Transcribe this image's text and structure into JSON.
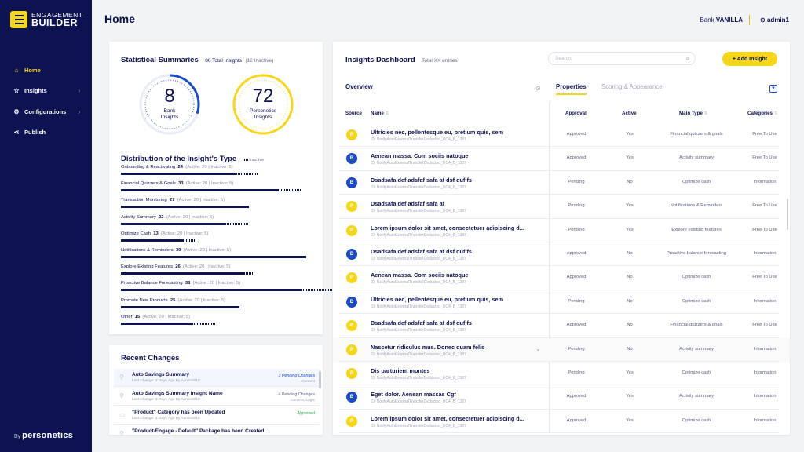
{
  "brand": {
    "top": "ENGAGEMENT",
    "bottom": "BUILDER",
    "by": "By",
    "by_brand": "personetics"
  },
  "nav": [
    {
      "label": "Home",
      "icon": "home-icon",
      "glyph": "⌂",
      "active": true,
      "chev": ""
    },
    {
      "label": "Insights",
      "icon": "star-icon",
      "glyph": "☆",
      "active": false,
      "chev": "›"
    },
    {
      "label": "Configurations",
      "icon": "gear-icon",
      "glyph": "⚙",
      "active": false,
      "chev": "›"
    },
    {
      "label": "Publish",
      "icon": "share-icon",
      "glyph": "⋖",
      "active": false,
      "chev": ""
    }
  ],
  "header": {
    "title": "Home",
    "bank_prefix": "Bank",
    "bank_name": "VANILLA",
    "user": "admin1"
  },
  "stats": {
    "title": "Statistical Summaries",
    "total": "80 Total Insights",
    "inactive": "(12 Inactive)",
    "bank_count": "8",
    "bank_label1": "Bank",
    "bank_label2": "Insights",
    "pers_count": "72",
    "pers_label1": "Personetics",
    "pers_label2": "Insights",
    "dist_title": "Distribution of the Insight's Type",
    "dist_legend": "Inactive"
  },
  "distribution": [
    {
      "name": "Onboarding & Reactivating",
      "count": "24",
      "detail": "(Active: 20 | Inactive: 5)",
      "value": 24,
      "inactive": 5
    },
    {
      "name": "Financial Quizzers & Goals",
      "count": "33",
      "detail": "(Active: 20 | Inactive: 5)",
      "value": 33,
      "inactive": 5
    },
    {
      "name": "Transaction Monitoring",
      "count": "27",
      "detail": "(Active: 20 | Inactive: 5)",
      "value": 27,
      "inactive": 0
    },
    {
      "name": "Activity Summary",
      "count": "22",
      "detail": "(Active: 20 | Inactive: 5)",
      "value": 22,
      "inactive": 5
    },
    {
      "name": "Optimize Cash",
      "count": "13",
      "detail": "(Active: 20 | Inactive: 5)",
      "value": 13,
      "inactive": 3
    },
    {
      "name": "Notifications & Reminders",
      "count": "39",
      "detail": "(Active: 20 | Inactive: 5)",
      "value": 39,
      "inactive": 0
    },
    {
      "name": "Explore Existing Features",
      "count": "26",
      "detail": "(Active: 20 | Inactive: 5)",
      "value": 26,
      "inactive": 2
    },
    {
      "name": "Proactive Balance Forecasting",
      "count": "38",
      "detail": "(Active: 20 | Inactive: 5)",
      "value": 38,
      "inactive": 16
    },
    {
      "name": "Promote New Products",
      "count": "25",
      "detail": "(Active: 20 | Inactive: 5)",
      "value": 25,
      "inactive": 0
    },
    {
      "name": "Other",
      "count": "15",
      "detail": "(Active: 20 | Inactive: 5)",
      "value": 15,
      "inactive": 5
    }
  ],
  "recent": {
    "title": "Recent Changes",
    "items": [
      {
        "title": "Auto Savings Summary",
        "meta": "Last Change: 3 Days Ago By Admin2019",
        "r1": "3 Pending Changes",
        "r2": "Content",
        "c1": "#1a4bc9",
        "icon": "pin-icon"
      },
      {
        "title": "Auto Savings Summary Insight Name",
        "meta": "Last Change: 3 Days Ago By Admin2019",
        "r1": "4 Pending Changes",
        "r2": "Content, Logic",
        "c1": "#5d6180",
        "icon": "pin-icon"
      },
      {
        "title": "\"Product\" Category has been Updated",
        "meta": "Last Change: 3 Days Ago By Admin2019",
        "r1": "Approved",
        "r2": "",
        "c1": "#2fa84f",
        "icon": "card-icon"
      },
      {
        "title": "\"Product-Engage - Default\" Package has been Created!",
        "meta": "",
        "r1": "",
        "r2": "",
        "c1": "#5d6180",
        "icon": "pin-icon"
      }
    ]
  },
  "dashboard": {
    "title": "Insights Dashboard",
    "subtitle": "Total XX entries",
    "search_placeholder": "Search",
    "add_label": "+ Add Insight",
    "overview": "Overview",
    "tab_properties": "Properties",
    "tab_scoring": "Scoring & Appearance",
    "col_source": "Source",
    "col_name": "Name",
    "col_approval": "Approval",
    "col_active": "Active",
    "col_type": "Main Type",
    "col_categories": "Categories"
  },
  "rows": [
    {
      "src": "P",
      "name": "Ultricies nec, pellentesque eu, pretium quis, sem",
      "id": "ID: NotifyAutoExternalTransferDeducted_UC4_B_1387",
      "approval": "Approved",
      "active": "Yes",
      "type": "Financial quizzers & goals",
      "cat": "Free To Use"
    },
    {
      "src": "B",
      "name": "Aenean massa. Com sociis natoque",
      "id": "ID: NotifyAutoExternalTransferDeducted_UC4_B_1387",
      "approval": "Approved",
      "active": "Yes",
      "type": "Activity summary",
      "cat": "Free To Use"
    },
    {
      "src": "B",
      "name": "Dsadsafa def adsfaf safa af dsf duf fs",
      "id": "ID: NotifyAutoExternalTransferDeducted_UC4_B_1387",
      "approval": "Pending",
      "active": "No",
      "type": "Optimize cash",
      "cat": "Information"
    },
    {
      "src": "P",
      "name": "Dsadsafa def adsfaf safa af",
      "id": "ID: NotifyAutoExternalTransferDeducted_UC4_B_1387",
      "approval": "Pending",
      "active": "Yes",
      "type": "Notifications & Reminders",
      "cat": "Free To Use"
    },
    {
      "src": "P",
      "name": "Lorem ipsum dolor sit amet, consectetuer adipiscing d...",
      "id": "ID: NotifyAutoExternalTransferDeducted_UC4_B_1387",
      "approval": "Pending",
      "active": "Yes",
      "type": "Explore existing features",
      "cat": "Free To Use"
    },
    {
      "src": "B",
      "name": "Dsadsafa def adsfaf safa af dsf duf fs",
      "id": "ID: NotifyAutoExternalTransferDeducted_UC4_B_1387",
      "approval": "Approved",
      "active": "No",
      "type": "Proactive balance forecasting",
      "cat": "Information"
    },
    {
      "src": "P",
      "name": "Aenean massa. Com sociis natoque",
      "id": "ID: NotifyAutoExternalTransferDeducted_UC4_B_1387",
      "approval": "Approved",
      "active": "No",
      "type": "Optimize cash",
      "cat": "Free To Use"
    },
    {
      "src": "B",
      "name": "Ultricies nec, pellentesque eu, pretium quis, sem",
      "id": "ID: NotifyAutoExternalTransferDeducted_UC4_B_1387",
      "approval": "Pending",
      "active": "No",
      "type": "Optimize cash",
      "cat": "Information"
    },
    {
      "src": "P",
      "name": "Dsadsafa def adsfaf safa af dsf duf fs",
      "id": "ID: NotifyAutoExternalTransferDeducted_UC4_B_1387",
      "approval": "Approved",
      "active": "No",
      "type": "Financial quizzers & goals",
      "cat": "Free To Use"
    },
    {
      "src": "P",
      "name": "Nascetur ridiculus mus. Donec quam felis",
      "id": "ID: NotifyAutoExternalTransferDeducted_UC4_B_1387",
      "approval": "Pending",
      "active": "No",
      "type": "Activity summary",
      "cat": "Information"
    },
    {
      "src": "P",
      "name": "Dis parturient montes",
      "id": "ID: NotifyAutoExternalTransferDeducted_UC4_B_1387",
      "approval": "Pending",
      "active": "Yes",
      "type": "Optimize cash",
      "cat": "Information"
    },
    {
      "src": "B",
      "name": "Eget dolor. Aenean massas Cgf",
      "id": "ID: NotifyAutoExternalTransferDeducted_UC4_B_1387",
      "approval": "Approved",
      "active": "Yes",
      "type": "Activity summary",
      "cat": "Information"
    },
    {
      "src": "P",
      "name": "Lorem ipsum dolor sit amet, consectetuer adipiscing d...",
      "id": "ID: NotifyAutoExternalTransferDeducted_UC4_B_1387",
      "approval": "Approved",
      "active": "Yes",
      "type": "Optimize cash",
      "cat": "Information"
    }
  ],
  "colors": {
    "navy": "#0d1250",
    "yellow": "#f5d619",
    "blue": "#1a4bc9",
    "green": "#2fa84f"
  }
}
